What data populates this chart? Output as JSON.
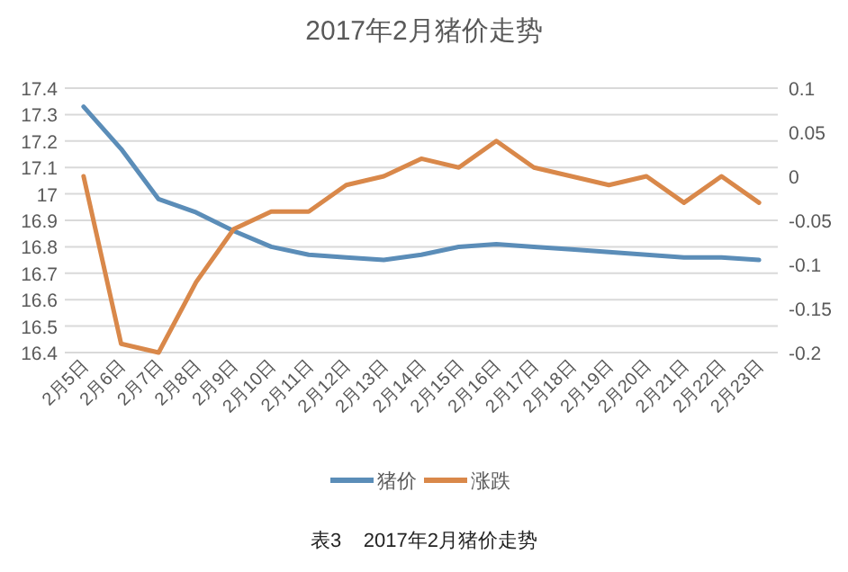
{
  "chart_data": {
    "type": "line",
    "title": "2017年2月猪价走势",
    "categories": [
      "2月5日",
      "2月6日",
      "2月7日",
      "2月8日",
      "2月9日",
      "2月10日",
      "2月11日",
      "2月12日",
      "2月13日",
      "2月14日",
      "2月15日",
      "2月16日",
      "2月17日",
      "2月18日",
      "2月19日",
      "2月20日",
      "2月21日",
      "2月22日",
      "2月23日"
    ],
    "series": [
      {
        "name": "猪价",
        "color": "#5b8db8",
        "values": [
          17.33,
          17.17,
          16.98,
          16.93,
          16.86,
          16.8,
          16.77,
          16.76,
          16.75,
          16.77,
          16.8,
          16.81,
          16.8,
          16.79,
          16.78,
          16.77,
          16.76,
          16.76,
          16.75
        ]
      },
      {
        "name": "涨跌",
        "color": "#d9884a",
        "axis": "y2",
        "values": [
          0.0,
          -0.19,
          -0.2,
          -0.12,
          -0.06,
          -0.04,
          -0.04,
          -0.01,
          0.0,
          0.02,
          0.01,
          0.04,
          0.01,
          0.0,
          -0.01,
          0.0,
          -0.03,
          0.0,
          -0.03
        ]
      }
    ],
    "ylim": [
      16.4,
      17.4
    ],
    "yticks": [
      16.4,
      16.5,
      16.6,
      16.7,
      16.8,
      16.9,
      {
        "value": 17,
        "label": "17"
      },
      17.1,
      17.2,
      17.3,
      17.4
    ],
    "y2lim": [
      -0.2,
      0.1
    ],
    "y2ticks": [
      -0.2,
      -0.15,
      -0.1,
      -0.05,
      {
        "value": 0,
        "label": "0"
      },
      0.05,
      0.1
    ],
    "grid": "y",
    "legend": "bottom",
    "marker": "none",
    "line_style": "solid",
    "annotations": [
      "表3    2017年2月猪价走势"
    ]
  }
}
